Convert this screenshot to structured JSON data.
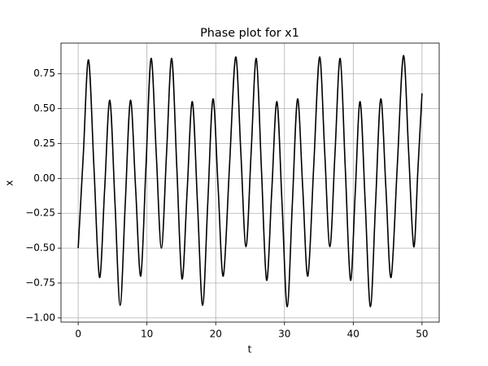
{
  "chart_data": {
    "type": "line",
    "title": "Phase plot for x1",
    "x_label": "t",
    "y_label": "x",
    "x": [
      0,
      0.75,
      1.5,
      2.3,
      3.1,
      3.85,
      4.6,
      5.35,
      6.1,
      6.85,
      7.6,
      8.35,
      9.1,
      9.85,
      10.6,
      11.35,
      12.1,
      12.85,
      13.6,
      14.35,
      15.1,
      15.85,
      16.6,
      17.35,
      18.1,
      18.85,
      19.6,
      20.35,
      21.1,
      22.0,
      22.9,
      23.65,
      24.4,
      25.15,
      25.9,
      26.65,
      27.4,
      28.15,
      28.9,
      29.65,
      30.4,
      31.15,
      31.9,
      32.65,
      33.4,
      34.25,
      35.1,
      35.85,
      36.6,
      37.35,
      38.1,
      38.85,
      39.6,
      40.3,
      41.0,
      41.75,
      42.5,
      43.25,
      44.0,
      44.75,
      45.5,
      46.4,
      47.3,
      48.05,
      48.8,
      49.4,
      50
    ],
    "values": [
      -0.5,
      0.175,
      0.85,
      0.07,
      -0.71,
      -0.075,
      0.56,
      -0.175,
      -0.91,
      -0.175,
      0.56,
      -0.07,
      -0.7,
      0.08,
      0.86,
      0.18,
      -0.5,
      0.18,
      0.86,
      0.07,
      -0.72,
      -0.085,
      0.55,
      -0.18,
      -0.91,
      -0.17,
      0.57,
      -0.065,
      -0.7,
      0.085,
      0.87,
      0.19,
      -0.49,
      0.185,
      0.86,
      0.065,
      -0.73,
      -0.09,
      0.55,
      -0.185,
      -0.92,
      -0.175,
      0.57,
      -0.065,
      -0.7,
      0.085,
      0.87,
      0.19,
      -0.49,
      0.185,
      0.86,
      0.065,
      -0.73,
      -0.09,
      0.55,
      -0.185,
      -0.92,
      -0.175,
      0.57,
      -0.07,
      -0.71,
      0.085,
      0.88,
      0.195,
      -0.49,
      0.06,
      0.61
    ],
    "color": "#000000",
    "xlim": [
      -2.5,
      52.5
    ],
    "xticks": [
      0,
      10,
      20,
      30,
      40,
      50
    ],
    "ylim": [
      -1.03,
      0.97
    ],
    "yticks": [
      {
        "value": -1,
        "label": "−1.00"
      },
      {
        "value": -0.75,
        "label": "−0.75"
      },
      {
        "value": -0.5,
        "label": "−0.50"
      },
      {
        "value": -0.25,
        "label": "−0.25"
      },
      {
        "value": 0,
        "label": "0.00"
      },
      {
        "value": 0.25,
        "label": "0.25"
      },
      {
        "value": 0.5,
        "label": "0.50"
      },
      {
        "value": 0.75,
        "label": "0.75"
      }
    ],
    "grid": true
  }
}
